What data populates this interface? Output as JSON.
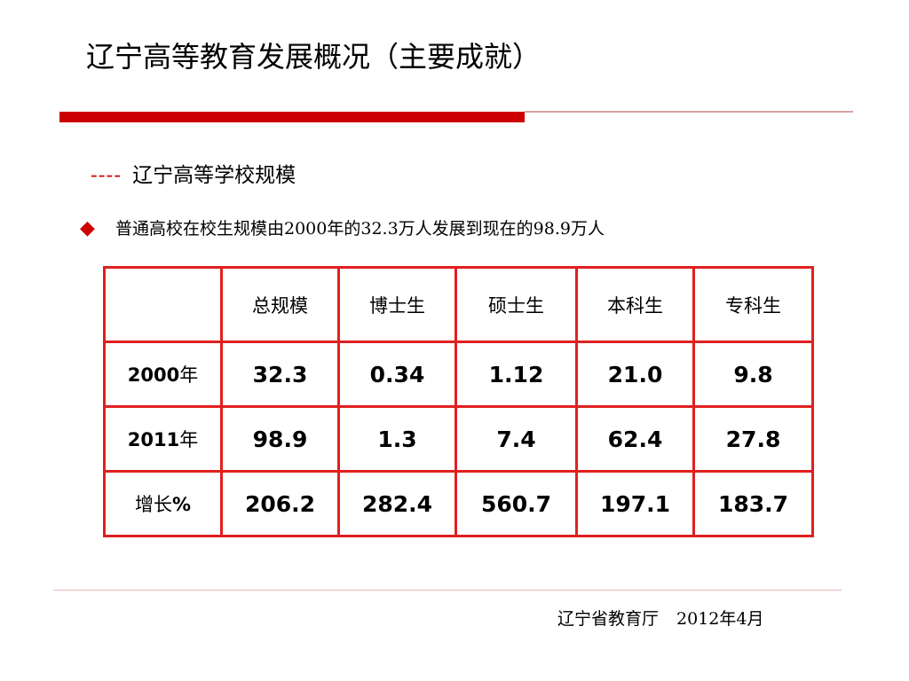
{
  "title": "辽宁高等教育发展概况（主要成就）",
  "subtitle": {
    "dash": "----",
    "text": "辽宁高等学校规模"
  },
  "bullet": {
    "icon": "diamond-icon",
    "icon_char": "◆",
    "text": "普通高校在校生规模由2000年的32.3万人发展到现在的98.9万人"
  },
  "table": {
    "corner": "",
    "columns": [
      "总规模",
      "博士生",
      "硕士生",
      "本科生",
      "专科生"
    ],
    "rows": [
      {
        "label": "2000",
        "suffix": "年",
        "values": [
          "32.3",
          "0.34",
          "1.12",
          "21.0",
          "9.8"
        ]
      },
      {
        "label": "2011",
        "suffix": "年",
        "values": [
          "98.9",
          "1.3",
          "7.4",
          "62.4",
          "27.8"
        ]
      },
      {
        "label_prefix": "增长",
        "label": "%",
        "values": [
          "206.2",
          "282.4",
          "560.7",
          "197.1",
          "183.7"
        ]
      }
    ]
  },
  "footer": {
    "org": "辽宁省教育厅",
    "date": "2012年4月"
  },
  "colors": {
    "accent_red": "#cc0000",
    "table_border": "#e02020",
    "thin_rule": "#d7a0a0",
    "footer_rule": "#e6b8b8"
  }
}
